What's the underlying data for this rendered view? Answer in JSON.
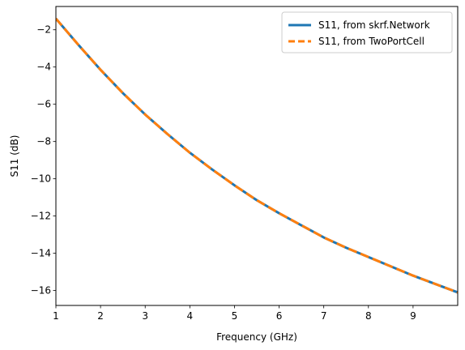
{
  "chart_data": {
    "type": "line",
    "title": "",
    "xlabel": "Frequency (GHz)",
    "ylabel": "S11 (dB)",
    "xlim": [
      1,
      10
    ],
    "ylim": [
      -16.8,
      -0.75
    ],
    "xticks": [
      1,
      2,
      3,
      4,
      5,
      6,
      7,
      8,
      9
    ],
    "xtick_labels": [
      "1",
      "2",
      "3",
      "4",
      "5",
      "6",
      "7",
      "8",
      "9"
    ],
    "yticks": [
      -2,
      -4,
      -6,
      -8,
      -10,
      -12,
      -14,
      -16
    ],
    "ytick_labels": [
      "−2",
      "−4",
      "−6",
      "−8",
      "−10",
      "−12",
      "−14",
      "−16"
    ],
    "grid": false,
    "legend_position": "upper-right",
    "x": [
      1.0,
      1.5,
      2.0,
      2.5,
      3.0,
      3.5,
      4.0,
      4.5,
      5.0,
      5.5,
      6.0,
      6.5,
      7.0,
      7.5,
      8.0,
      8.5,
      9.0,
      9.5,
      10.0
    ],
    "series": [
      {
        "name": "S11, from skrf.Network",
        "color": "#1f77b4",
        "style": "solid",
        "values": [
          -1.4,
          -2.8,
          -4.15,
          -5.4,
          -6.55,
          -7.6,
          -8.6,
          -9.5,
          -10.35,
          -11.15,
          -11.85,
          -12.5,
          -13.15,
          -13.7,
          -14.2,
          -14.7,
          -15.2,
          -15.65,
          -16.1
        ]
      },
      {
        "name": "S11, from TwoPortCell",
        "color": "#ff7f0e",
        "style": "dashed",
        "values": [
          -1.4,
          -2.8,
          -4.15,
          -5.4,
          -6.55,
          -7.6,
          -8.6,
          -9.5,
          -10.35,
          -11.15,
          -11.85,
          -12.5,
          -13.15,
          -13.7,
          -14.2,
          -14.7,
          -15.2,
          -15.65,
          -16.1
        ]
      }
    ]
  }
}
